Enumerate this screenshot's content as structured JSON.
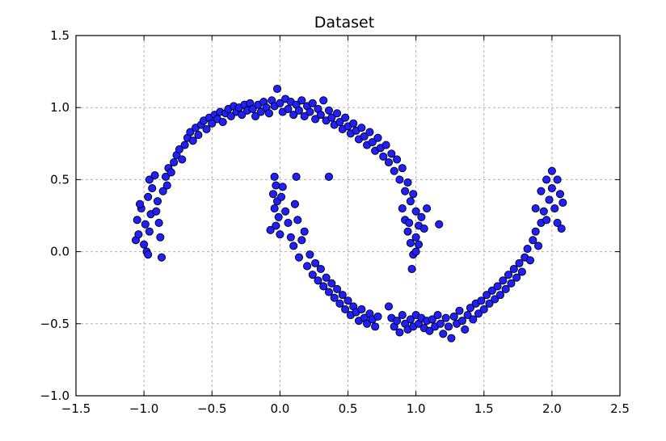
{
  "chart_data": {
    "type": "scatter",
    "title": "Dataset",
    "xlabel": "",
    "ylabel": "",
    "xlim": [
      -1.5,
      2.5
    ],
    "ylim": [
      -1.0,
      1.5
    ],
    "xticks": [
      -1.5,
      -1.0,
      -0.5,
      0.0,
      0.5,
      1.0,
      1.5,
      2.0,
      2.5
    ],
    "yticks": [
      -1.0,
      -0.5,
      0.0,
      0.5,
      1.0,
      1.5
    ],
    "xtick_labels": [
      "−1.5",
      "−1.0",
      "−0.5",
      "0.0",
      "0.5",
      "1.0",
      "1.5",
      "2.0",
      "2.5"
    ],
    "ytick_labels": [
      "−1.0",
      "−0.5",
      "0.0",
      "0.5",
      "1.0",
      "1.5"
    ],
    "grid": true,
    "grid_style": "dashed",
    "marker_color": "#1f1fff",
    "marker_edge_color": "#000000",
    "series": [
      {
        "shape": "upper-moon",
        "points": [
          [
            -1.06,
            0.08
          ],
          [
            -1.04,
            0.12
          ],
          [
            -1.05,
            0.22
          ],
          [
            -1.02,
            0.3
          ],
          [
            -1.03,
            0.33
          ],
          [
            -0.98,
            0.0
          ],
          [
            -0.97,
            -0.02
          ],
          [
            -1.0,
            0.05
          ],
          [
            -0.96,
            0.14
          ],
          [
            -0.99,
            0.19
          ],
          [
            -0.95,
            0.26
          ],
          [
            -0.97,
            0.38
          ],
          [
            -0.94,
            0.44
          ],
          [
            -0.96,
            0.5
          ],
          [
            -0.92,
            0.53
          ],
          [
            -0.9,
            0.35
          ],
          [
            -0.91,
            0.28
          ],
          [
            -0.89,
            0.2
          ],
          [
            -0.88,
            0.1
          ],
          [
            -0.87,
            -0.04
          ],
          [
            -0.86,
            0.42
          ],
          [
            -0.84,
            0.52
          ],
          [
            -0.82,
            0.58
          ],
          [
            -0.8,
            0.55
          ],
          [
            -0.83,
            0.46
          ],
          [
            -0.78,
            0.62
          ],
          [
            -0.76,
            0.67
          ],
          [
            -0.74,
            0.71
          ],
          [
            -0.72,
            0.64
          ],
          [
            -0.7,
            0.74
          ],
          [
            -0.68,
            0.79
          ],
          [
            -0.66,
            0.83
          ],
          [
            -0.64,
            0.77
          ],
          [
            -0.62,
            0.86
          ],
          [
            -0.6,
            0.81
          ],
          [
            -0.58,
            0.88
          ],
          [
            -0.56,
            0.91
          ],
          [
            -0.54,
            0.85
          ],
          [
            -0.52,
            0.93
          ],
          [
            -0.5,
            0.89
          ],
          [
            -0.48,
            0.95
          ],
          [
            -0.46,
            0.92
          ],
          [
            -0.44,
            0.97
          ],
          [
            -0.42,
            0.9
          ],
          [
            -0.4,
            0.96
          ],
          [
            -0.38,
            0.99
          ],
          [
            -0.36,
            0.94
          ],
          [
            -0.34,
            1.01
          ],
          [
            -0.32,
            0.97
          ],
          [
            -0.3,
            1.0
          ],
          [
            -0.28,
            0.95
          ],
          [
            -0.26,
            1.02
          ],
          [
            -0.24,
            0.98
          ],
          [
            -0.22,
            1.03
          ],
          [
            -0.2,
            0.99
          ],
          [
            -0.18,
            0.94
          ],
          [
            -0.16,
            1.02
          ],
          [
            -0.14,
            0.97
          ],
          [
            -0.12,
            1.04
          ],
          [
            -0.1,
            1.0
          ],
          [
            -0.08,
            0.96
          ],
          [
            -0.06,
            1.05
          ],
          [
            -0.04,
            1.01
          ],
          [
            -0.02,
            1.13
          ],
          [
            0.0,
            1.03
          ],
          [
            0.02,
            0.97
          ],
          [
            0.04,
            1.06
          ],
          [
            0.06,
            0.99
          ],
          [
            0.08,
            1.04
          ],
          [
            0.1,
            0.95
          ],
          [
            0.12,
            1.02
          ],
          [
            0.14,
            0.98
          ],
          [
            0.16,
            1.05
          ],
          [
            0.18,
            0.94
          ],
          [
            0.2,
            1.01
          ],
          [
            0.22,
            0.97
          ],
          [
            0.24,
            1.03
          ],
          [
            0.26,
            0.92
          ],
          [
            0.28,
            0.99
          ],
          [
            0.3,
            0.95
          ],
          [
            0.32,
            1.05
          ],
          [
            0.34,
            0.91
          ],
          [
            0.36,
            0.98
          ],
          [
            0.38,
            0.93
          ],
          [
            0.4,
            0.88
          ],
          [
            0.42,
            0.96
          ],
          [
            0.44,
            0.9
          ],
          [
            0.46,
            0.85
          ],
          [
            0.48,
            0.93
          ],
          [
            0.5,
            0.87
          ],
          [
            0.52,
            0.82
          ],
          [
            0.54,
            0.89
          ],
          [
            0.56,
            0.84
          ],
          [
            0.58,
            0.78
          ],
          [
            0.6,
            0.86
          ],
          [
            0.62,
            0.8
          ],
          [
            0.64,
            0.74
          ],
          [
            0.66,
            0.83
          ],
          [
            0.68,
            0.76
          ],
          [
            0.7,
            0.7
          ],
          [
            0.72,
            0.79
          ],
          [
            0.74,
            0.72
          ],
          [
            0.76,
            0.66
          ],
          [
            0.78,
            0.74
          ],
          [
            0.8,
            0.62
          ],
          [
            0.82,
            0.68
          ],
          [
            0.84,
            0.56
          ],
          [
            0.86,
            0.64
          ],
          [
            0.88,
            0.5
          ],
          [
            0.9,
            0.58
          ],
          [
            0.92,
            0.42
          ],
          [
            0.94,
            0.48
          ],
          [
            0.96,
            0.35
          ],
          [
            0.98,
            0.4
          ],
          [
            1.0,
            0.28
          ],
          [
            0.9,
            0.3
          ],
          [
            0.92,
            0.22
          ],
          [
            0.94,
            0.14
          ],
          [
            0.96,
            0.06
          ],
          [
            0.98,
            -0.02
          ],
          [
            1.0,
            0.1
          ],
          [
            1.02,
            0.18
          ],
          [
            1.04,
            0.24
          ],
          [
            1.06,
            0.16
          ],
          [
            1.08,
            0.3
          ],
          [
            0.97,
            -0.12
          ],
          [
            1.0,
            0.0
          ],
          [
            1.02,
            0.05
          ],
          [
            1.17,
            0.19
          ],
          [
            0.95,
            0.2
          ]
        ]
      },
      {
        "shape": "lower-moon",
        "points": [
          [
            -0.04,
            0.52
          ],
          [
            -0.03,
            0.46
          ],
          [
            -0.05,
            0.4
          ],
          [
            -0.02,
            0.35
          ],
          [
            -0.04,
            0.3
          ],
          [
            -0.01,
            0.24
          ],
          [
            -0.03,
            0.18
          ],
          [
            0.0,
            0.12
          ],
          [
            -0.07,
            0.15
          ],
          [
            0.01,
            0.38
          ],
          [
            0.02,
            0.45
          ],
          [
            0.04,
            0.28
          ],
          [
            0.06,
            0.2
          ],
          [
            0.08,
            0.1
          ],
          [
            0.1,
            0.04
          ],
          [
            0.12,
            0.52
          ],
          [
            0.11,
            0.33
          ],
          [
            0.13,
            0.22
          ],
          [
            0.14,
            -0.04
          ],
          [
            0.16,
            0.08
          ],
          [
            0.18,
            0.14
          ],
          [
            0.2,
            -0.1
          ],
          [
            0.22,
            -0.02
          ],
          [
            0.24,
            -0.16
          ],
          [
            0.26,
            -0.08
          ],
          [
            0.28,
            -0.2
          ],
          [
            0.3,
            -0.12
          ],
          [
            0.32,
            -0.24
          ],
          [
            0.34,
            -0.18
          ],
          [
            0.36,
            -0.28
          ],
          [
            0.38,
            -0.22
          ],
          [
            0.4,
            -0.32
          ],
          [
            0.42,
            -0.26
          ],
          [
            0.44,
            -0.36
          ],
          [
            0.46,
            -0.3
          ],
          [
            0.48,
            -0.4
          ],
          [
            0.5,
            -0.34
          ],
          [
            0.52,
            -0.44
          ],
          [
            0.54,
            -0.38
          ],
          [
            0.56,
            -0.42
          ],
          [
            0.58,
            -0.48
          ],
          [
            0.6,
            -0.4
          ],
          [
            0.62,
            -0.46
          ],
          [
            0.64,
            -0.5
          ],
          [
            0.66,
            -0.43
          ],
          [
            0.68,
            -0.47
          ],
          [
            0.7,
            -0.52
          ],
          [
            0.72,
            -0.45
          ],
          [
            0.8,
            -0.38
          ],
          [
            0.82,
            -0.46
          ],
          [
            0.84,
            -0.52
          ],
          [
            0.86,
            -0.48
          ],
          [
            0.88,
            -0.56
          ],
          [
            0.9,
            -0.44
          ],
          [
            0.92,
            -0.5
          ],
          [
            0.94,
            -0.54
          ],
          [
            0.96,
            -0.47
          ],
          [
            0.98,
            -0.52
          ],
          [
            1.0,
            -0.44
          ],
          [
            1.02,
            -0.5
          ],
          [
            1.04,
            -0.46
          ],
          [
            1.06,
            -0.53
          ],
          [
            1.08,
            -0.48
          ],
          [
            1.1,
            -0.55
          ],
          [
            1.12,
            -0.47
          ],
          [
            1.14,
            -0.52
          ],
          [
            1.16,
            -0.44
          ],
          [
            1.18,
            -0.5
          ],
          [
            1.2,
            -0.57
          ],
          [
            1.22,
            -0.46
          ],
          [
            1.24,
            -0.52
          ],
          [
            1.26,
            -0.6
          ],
          [
            1.28,
            -0.45
          ],
          [
            1.3,
            -0.5
          ],
          [
            1.32,
            -0.41
          ],
          [
            1.34,
            -0.48
          ],
          [
            1.36,
            -0.54
          ],
          [
            1.38,
            -0.44
          ],
          [
            1.4,
            -0.39
          ],
          [
            1.42,
            -0.47
          ],
          [
            1.44,
            -0.36
          ],
          [
            1.46,
            -0.43
          ],
          [
            1.48,
            -0.34
          ],
          [
            1.5,
            -0.4
          ],
          [
            1.52,
            -0.3
          ],
          [
            1.54,
            -0.36
          ],
          [
            1.56,
            -0.27
          ],
          [
            1.58,
            -0.33
          ],
          [
            1.6,
            -0.24
          ],
          [
            1.62,
            -0.3
          ],
          [
            1.64,
            -0.2
          ],
          [
            1.66,
            -0.26
          ],
          [
            1.68,
            -0.16
          ],
          [
            1.7,
            -0.22
          ],
          [
            1.72,
            -0.12
          ],
          [
            1.74,
            -0.18
          ],
          [
            1.76,
            -0.08
          ],
          [
            1.78,
            -0.14
          ],
          [
            1.8,
            -0.04
          ],
          [
            1.82,
            0.02
          ],
          [
            1.84,
            -0.06
          ],
          [
            1.86,
            0.08
          ],
          [
            1.88,
            0.14
          ],
          [
            1.9,
            0.04
          ],
          [
            1.92,
            0.2
          ],
          [
            1.94,
            0.28
          ],
          [
            1.96,
            0.22
          ],
          [
            1.98,
            0.36
          ],
          [
            2.0,
            0.44
          ],
          [
            2.02,
            0.3
          ],
          [
            2.04,
            0.5
          ],
          [
            2.06,
            0.4
          ],
          [
            2.08,
            0.34
          ],
          [
            1.96,
            0.5
          ],
          [
            2.0,
            0.56
          ],
          [
            2.04,
            0.2
          ],
          [
            2.07,
            0.16
          ],
          [
            1.92,
            0.42
          ],
          [
            1.88,
            0.3
          ],
          [
            0.36,
            0.52
          ]
        ]
      }
    ]
  }
}
